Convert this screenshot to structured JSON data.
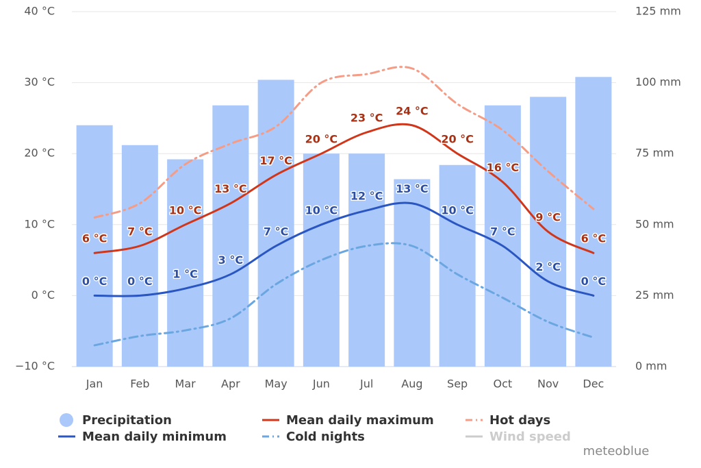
{
  "chart_data": {
    "type": "combo",
    "categories": [
      "Jan",
      "Feb",
      "Mar",
      "Apr",
      "May",
      "Jun",
      "Jul",
      "Aug",
      "Sep",
      "Oct",
      "Nov",
      "Dec"
    ],
    "ylim": [
      -10,
      40
    ],
    "yticks": [
      {
        "value": -10,
        "label": "−10 °C"
      },
      {
        "value": 0,
        "label": "0 °C"
      },
      {
        "value": 10,
        "label": "10 °C"
      },
      {
        "value": 20,
        "label": "20 °C"
      },
      {
        "value": 30,
        "label": "30 °C"
      },
      {
        "value": 40,
        "label": "40 °C"
      }
    ],
    "y2lim": [
      0,
      125
    ],
    "y2ticks": [
      {
        "value": 0,
        "label": "0 mm"
      },
      {
        "value": 25,
        "label": "25 mm"
      },
      {
        "value": 50,
        "label": "50 mm"
      },
      {
        "value": 75,
        "label": "75 mm"
      },
      {
        "value": 100,
        "label": "100 mm"
      },
      {
        "value": 125,
        "label": "125 mm"
      }
    ],
    "grid": true,
    "series": [
      {
        "name": "Precipitation",
        "type": "bar",
        "axis": "y2",
        "color": "#abc8fa",
        "values": [
          85,
          78,
          73,
          92,
          101,
          75,
          75,
          66,
          71,
          92,
          95,
          102
        ]
      },
      {
        "name": "Mean daily maximum",
        "type": "line",
        "color": "#d0361a",
        "label_color": "#a83216",
        "values": [
          6,
          7,
          10,
          13,
          17,
          20,
          23,
          24,
          20,
          16,
          9,
          6
        ],
        "value_labels": [
          "6 °C",
          "7 °C",
          "10 °C",
          "13 °C",
          "17 °C",
          "20 °C",
          "23 °C",
          "24 °C",
          "20 °C",
          "16 °C",
          "9 °C",
          "6 °C"
        ]
      },
      {
        "name": "Hot days",
        "type": "line",
        "dashed": true,
        "color": "#f59c86",
        "values": [
          11,
          13,
          18.5,
          21.4,
          23.8,
          30,
          31.2,
          32,
          27,
          23.3,
          17.5,
          12.2
        ]
      },
      {
        "name": "Mean daily minimum",
        "type": "line",
        "color": "#2a56c1",
        "label_color": "#2c4fa3",
        "values": [
          0,
          0,
          1,
          3,
          7,
          10,
          12,
          13,
          10,
          7,
          2,
          0
        ],
        "value_labels": [
          "0 °C",
          "0 °C",
          "1 °C",
          "3 °C",
          "7 °C",
          "10 °C",
          "12 °C",
          "13 °C",
          "10 °C",
          "7 °C",
          "2 °C",
          "0 °C"
        ]
      },
      {
        "name": "Cold nights",
        "type": "line",
        "dashed": true,
        "color": "#6aa6e0",
        "values": [
          -7,
          -5.7,
          -4.9,
          -3.2,
          1.6,
          5,
          7,
          7,
          3,
          -0.3,
          -3.7,
          -5.9
        ]
      },
      {
        "name": "Wind speed",
        "type": "line",
        "hidden": true,
        "color": "#cccccc",
        "values": [
          null,
          null,
          null,
          null,
          null,
          null,
          null,
          null,
          null,
          null,
          null,
          null
        ]
      }
    ],
    "credit": "meteoblue"
  }
}
